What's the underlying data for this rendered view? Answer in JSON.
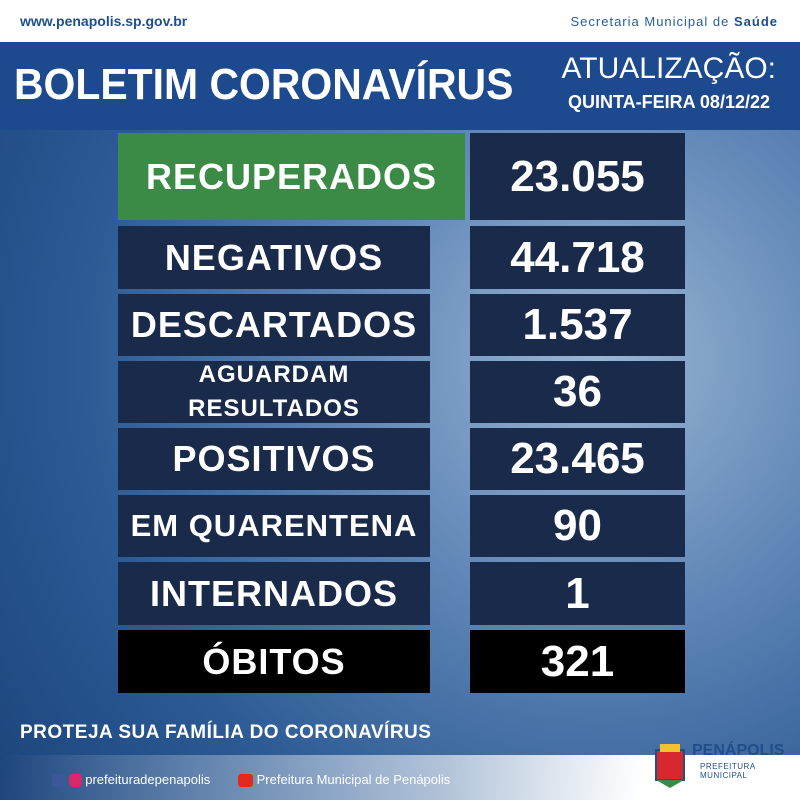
{
  "header": {
    "url": "www.penapolis.sp.gov.br",
    "department": "Secretaria Municipal de",
    "department_bold": "Saúde",
    "title": "BOLETIM CORONAVÍRUS",
    "update_label": "ATUALIZAÇÃO:",
    "update_date": "QUINTA-FEIRA 08/12/22"
  },
  "table": {
    "rows": [
      {
        "label": "RECUPERADOS",
        "value": "23.055"
      },
      {
        "label": "NEGATIVOS",
        "value": "44.718"
      },
      {
        "label": "DESCARTADOS",
        "value": "1.537"
      },
      {
        "label": "AGUARDAM RESULTADOS",
        "value": "36"
      },
      {
        "label": "POSITIVOS",
        "value": "23.465"
      },
      {
        "label": "EM QUARENTENA",
        "value": "90"
      },
      {
        "label": "INTERNADOS",
        "value": "1"
      },
      {
        "label": "ÓBITOS",
        "value": "321"
      }
    ]
  },
  "footer": {
    "slogan": "PROTEJA SUA FAMÍLIA DO CORONAVÍRUS",
    "social_handle": "prefeituradepenapolis",
    "youtube_channel": "Prefeitura Municipal de Penápolis",
    "logo_name": "PENÁPOLIS",
    "logo_subtitle": "PREFEITURA MUNICIPAL"
  }
}
